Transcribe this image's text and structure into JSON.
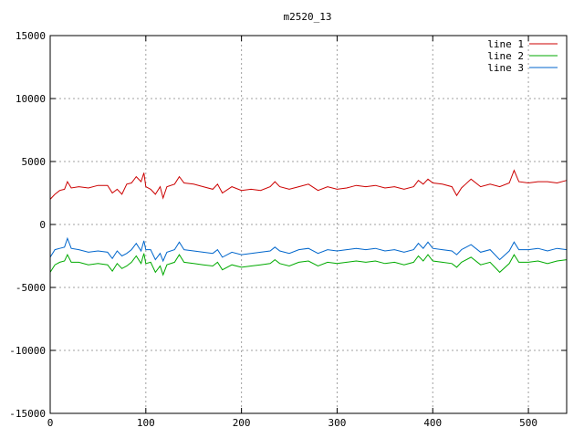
{
  "chart_data": {
    "type": "line",
    "title": "m2520_13",
    "xlabel": "",
    "ylabel": "",
    "xlim": [
      0,
      540
    ],
    "ylim": [
      -15000,
      15000
    ],
    "xticks": [
      0,
      100,
      200,
      300,
      400,
      500
    ],
    "yticks": [
      -15000,
      -10000,
      -5000,
      0,
      5000,
      10000,
      15000
    ],
    "grid": true,
    "legend_position": "top-right",
    "series": [
      {
        "name": "line 1",
        "color": "#cc0000",
        "x": [
          0,
          5,
          10,
          15,
          18,
          22,
          30,
          40,
          50,
          60,
          65,
          70,
          75,
          80,
          85,
          90,
          95,
          98,
          100,
          105,
          110,
          115,
          118,
          122,
          130,
          135,
          140,
          150,
          160,
          170,
          175,
          180,
          190,
          200,
          210,
          220,
          230,
          235,
          240,
          250,
          260,
          270,
          280,
          290,
          300,
          310,
          320,
          330,
          340,
          350,
          360,
          370,
          380,
          385,
          390,
          395,
          400,
          410,
          420,
          425,
          430,
          440,
          450,
          460,
          470,
          480,
          485,
          490,
          500,
          510,
          520,
          530,
          540
        ],
        "y": [
          2000,
          2400,
          2700,
          2800,
          3400,
          2900,
          3000,
          2900,
          3100,
          3100,
          2500,
          2800,
          2400,
          3200,
          3300,
          3800,
          3400,
          4100,
          3000,
          2800,
          2400,
          3000,
          2100,
          3000,
          3200,
          3800,
          3300,
          3200,
          3000,
          2800,
          3200,
          2500,
          3000,
          2700,
          2800,
          2700,
          3000,
          3400,
          3000,
          2800,
          3000,
          3200,
          2700,
          3000,
          2800,
          2900,
          3100,
          3000,
          3100,
          2900,
          3000,
          2800,
          3000,
          3500,
          3200,
          3600,
          3300,
          3200,
          3000,
          2300,
          2900,
          3600,
          3000,
          3200,
          3000,
          3300,
          4300,
          3400,
          3300,
          3400,
          3400,
          3300,
          3500
        ]
      },
      {
        "name": "line 2",
        "color": "#00aa00",
        "x": [
          0,
          5,
          10,
          15,
          18,
          22,
          30,
          40,
          50,
          60,
          65,
          70,
          75,
          80,
          85,
          90,
          95,
          98,
          100,
          105,
          110,
          115,
          118,
          122,
          130,
          135,
          140,
          150,
          160,
          170,
          175,
          180,
          190,
          200,
          210,
          220,
          230,
          235,
          240,
          250,
          260,
          270,
          280,
          290,
          300,
          310,
          320,
          330,
          340,
          350,
          360,
          370,
          380,
          385,
          390,
          395,
          400,
          410,
          420,
          425,
          430,
          440,
          450,
          460,
          470,
          480,
          485,
          490,
          500,
          510,
          520,
          530,
          540
        ],
        "y": [
          -3800,
          -3200,
          -3000,
          -2900,
          -2400,
          -3000,
          -3000,
          -3200,
          -3100,
          -3200,
          -3700,
          -3100,
          -3500,
          -3300,
          -3000,
          -2500,
          -3100,
          -2300,
          -3100,
          -3000,
          -3800,
          -3300,
          -4000,
          -3200,
          -3000,
          -2400,
          -3000,
          -3100,
          -3200,
          -3300,
          -3000,
          -3600,
          -3200,
          -3400,
          -3300,
          -3200,
          -3100,
          -2800,
          -3100,
          -3300,
          -3000,
          -2900,
          -3300,
          -3000,
          -3100,
          -3000,
          -2900,
          -3000,
          -2900,
          -3100,
          -3000,
          -3200,
          -3000,
          -2500,
          -2900,
          -2400,
          -2900,
          -3000,
          -3100,
          -3400,
          -3000,
          -2600,
          -3200,
          -3000,
          -3800,
          -3100,
          -2400,
          -3000,
          -3000,
          -2900,
          -3100,
          -2900,
          -2800
        ]
      },
      {
        "name": "line 3",
        "color": "#0066cc",
        "x": [
          0,
          5,
          10,
          15,
          18,
          22,
          30,
          40,
          50,
          60,
          65,
          70,
          75,
          80,
          85,
          90,
          95,
          98,
          100,
          105,
          110,
          115,
          118,
          122,
          130,
          135,
          140,
          150,
          160,
          170,
          175,
          180,
          190,
          200,
          210,
          220,
          230,
          235,
          240,
          250,
          260,
          270,
          280,
          290,
          300,
          310,
          320,
          330,
          340,
          350,
          360,
          370,
          380,
          385,
          390,
          395,
          400,
          410,
          420,
          425,
          430,
          440,
          450,
          460,
          470,
          480,
          485,
          490,
          500,
          510,
          520,
          530,
          540
        ],
        "y": [
          -2600,
          -2000,
          -1900,
          -1800,
          -1100,
          -1900,
          -2000,
          -2200,
          -2100,
          -2200,
          -2700,
          -2100,
          -2500,
          -2300,
          -2000,
          -1500,
          -2100,
          -1300,
          -2000,
          -2000,
          -2800,
          -2300,
          -2900,
          -2200,
          -2000,
          -1400,
          -2000,
          -2100,
          -2200,
          -2300,
          -2000,
          -2600,
          -2200,
          -2400,
          -2300,
          -2200,
          -2100,
          -1800,
          -2100,
          -2300,
          -2000,
          -1900,
          -2300,
          -2000,
          -2100,
          -2000,
          -1900,
          -2000,
          -1900,
          -2100,
          -2000,
          -2200,
          -2000,
          -1500,
          -1900,
          -1400,
          -1900,
          -2000,
          -2100,
          -2400,
          -2000,
          -1600,
          -2200,
          -2000,
          -2800,
          -2100,
          -1400,
          -2000,
          -2000,
          -1900,
          -2100,
          -1900,
          -2000
        ]
      }
    ]
  }
}
